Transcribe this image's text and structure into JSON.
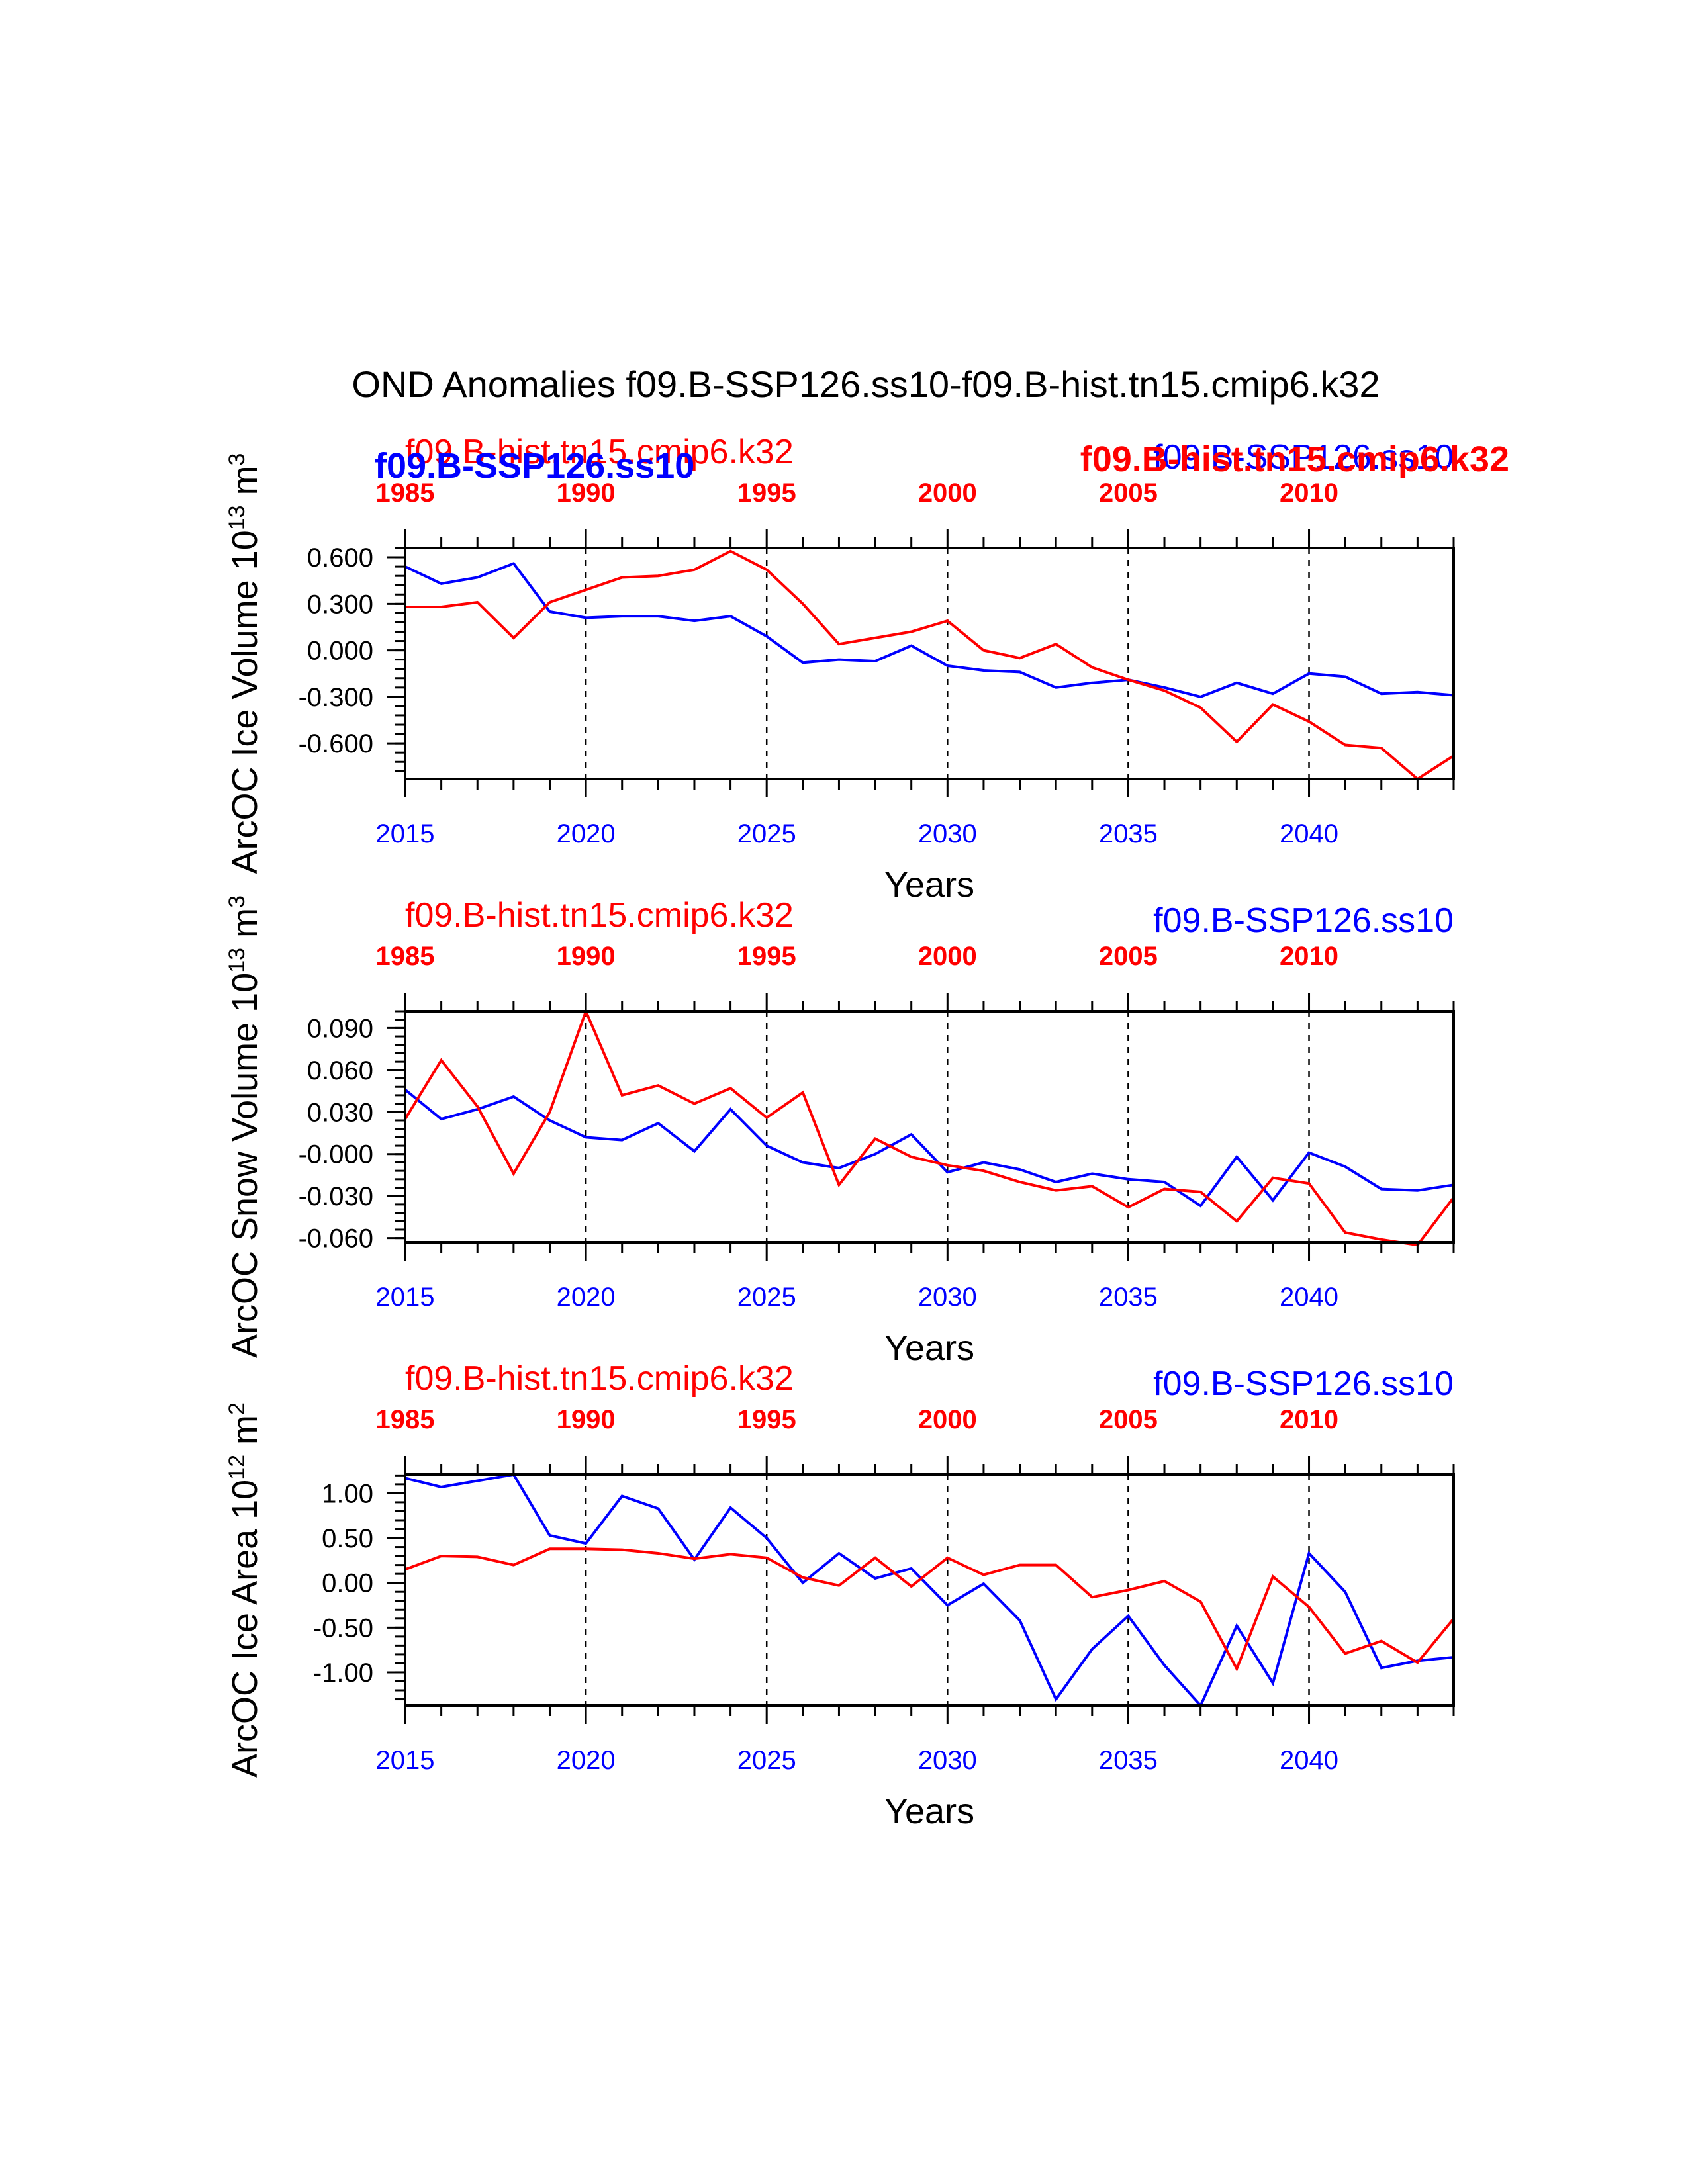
{
  "title": "OND Anomalies f09.B-SSP126.ss10-f09.B-hist.tn15.cmip6.k32",
  "colors": {
    "blue": "#0000ff",
    "red": "#ff0000",
    "axis": "#000000"
  },
  "top_overlay_labels": {
    "left_bold_blue": "f09.B-SSP126.ss10",
    "right_bold_red": "f09.B-hist.tn15.cmip6.k32"
  },
  "chart_data": [
    {
      "type": "line",
      "ylabel_base": "ArcOC Ice Volume 10",
      "ylabel_sup": "13",
      "ylabel_unit": "m",
      "ylabel_unit_sup": "3",
      "xlabel": "Years",
      "series_name_red": "f09.B-hist.tn15.cmip6.k32",
      "series_name_blue": "f09.B-SSP126.ss10",
      "xlim": [
        2015,
        2044
      ],
      "ylim": [
        -0.83,
        0.66
      ],
      "yticks": [
        -0.6,
        -0.3,
        0.0,
        0.3,
        0.6
      ],
      "ytick_labels": [
        "-0.600",
        "-0.300",
        "0.000",
        "0.300",
        "0.600"
      ],
      "ytick_minor_step": 0.06,
      "bottom_ticks": [
        2015,
        2020,
        2025,
        2030,
        2035,
        2040
      ],
      "bottom_tick_labels": [
        "2015",
        "2020",
        "2025",
        "2030",
        "2035",
        "2040"
      ],
      "top_ticks": [
        2015,
        2020,
        2025,
        2030,
        2035,
        2040
      ],
      "top_tick_labels": [
        "1985",
        "1990",
        "1995",
        "2000",
        "2005",
        "2010"
      ],
      "x": [
        2015,
        2016,
        2017,
        2018,
        2019,
        2020,
        2021,
        2022,
        2023,
        2024,
        2025,
        2026,
        2027,
        2028,
        2029,
        2030,
        2031,
        2032,
        2033,
        2034,
        2035,
        2036,
        2037,
        2038,
        2039,
        2040,
        2041,
        2042,
        2043,
        2044
      ],
      "series": [
        {
          "name": "f09.B-SSP126.ss10",
          "color": "#0000ff",
          "values": [
            0.54,
            0.43,
            0.47,
            0.56,
            0.25,
            0.21,
            0.22,
            0.22,
            0.19,
            0.22,
            0.09,
            -0.08,
            -0.06,
            -0.07,
            0.03,
            -0.1,
            -0.13,
            -0.14,
            -0.24,
            -0.21,
            -0.19,
            -0.24,
            -0.3,
            -0.21,
            -0.28,
            -0.15,
            -0.17,
            -0.28,
            -0.27,
            -0.29
          ]
        },
        {
          "name": "f09.B-hist.tn15.cmip6.k32",
          "color": "#ff0000",
          "values": [
            0.28,
            0.28,
            0.31,
            0.08,
            0.31,
            0.39,
            0.47,
            0.48,
            0.52,
            0.64,
            0.52,
            0.3,
            0.04,
            0.08,
            0.12,
            0.19,
            0.0,
            -0.05,
            0.04,
            -0.11,
            -0.19,
            -0.26,
            -0.37,
            -0.59,
            -0.35,
            -0.46,
            -0.61,
            -0.63,
            -0.83,
            -0.68
          ]
        }
      ]
    },
    {
      "type": "line",
      "ylabel_base": "ArcOC Snow Volume 10",
      "ylabel_sup": "13",
      "ylabel_unit": "m",
      "ylabel_unit_sup": "3",
      "xlabel": "Years",
      "series_name_red": "f09.B-hist.tn15.cmip6.k32",
      "series_name_blue": "f09.B-SSP126.ss10",
      "xlim": [
        2015,
        2044
      ],
      "ylim": [
        -0.063,
        0.102
      ],
      "yticks": [
        -0.06,
        -0.03,
        0.0,
        0.03,
        0.06,
        0.09
      ],
      "ytick_labels": [
        "-0.060",
        "-0.030",
        "-0.000",
        "0.030",
        "0.060",
        "0.090"
      ],
      "ytick_minor_step": 0.006,
      "bottom_ticks": [
        2015,
        2020,
        2025,
        2030,
        2035,
        2040
      ],
      "bottom_tick_labels": [
        "2015",
        "2020",
        "2025",
        "2030",
        "2035",
        "2040"
      ],
      "top_ticks": [
        2015,
        2020,
        2025,
        2030,
        2035,
        2040
      ],
      "top_tick_labels": [
        "1985",
        "1990",
        "1995",
        "2000",
        "2005",
        "2010"
      ],
      "x": [
        2015,
        2016,
        2017,
        2018,
        2019,
        2020,
        2021,
        2022,
        2023,
        2024,
        2025,
        2026,
        2027,
        2028,
        2029,
        2030,
        2031,
        2032,
        2033,
        2034,
        2035,
        2036,
        2037,
        2038,
        2039,
        2040,
        2041,
        2042,
        2043,
        2044
      ],
      "series": [
        {
          "name": "f09.B-SSP126.ss10",
          "color": "#0000ff",
          "values": [
            0.046,
            0.025,
            0.032,
            0.041,
            0.024,
            0.012,
            0.01,
            0.022,
            0.002,
            0.032,
            0.006,
            -0.006,
            -0.01,
            0.0,
            0.014,
            -0.013,
            -0.006,
            -0.011,
            -0.02,
            -0.014,
            -0.018,
            -0.02,
            -0.037,
            -0.002,
            -0.033,
            0.001,
            -0.009,
            -0.025,
            -0.026,
            -0.022
          ]
        },
        {
          "name": "f09.B-hist.tn15.cmip6.k32",
          "color": "#ff0000",
          "values": [
            0.025,
            0.067,
            0.034,
            -0.014,
            0.03,
            0.102,
            0.042,
            0.049,
            0.036,
            0.047,
            0.026,
            0.044,
            -0.022,
            0.011,
            -0.002,
            -0.008,
            -0.012,
            -0.02,
            -0.026,
            -0.023,
            -0.038,
            -0.025,
            -0.027,
            -0.048,
            -0.017,
            -0.021,
            -0.056,
            -0.061,
            -0.065,
            -0.031
          ]
        }
      ]
    },
    {
      "type": "line",
      "ylabel_base": "ArcOC Ice Area 10",
      "ylabel_sup": "12",
      "ylabel_unit": "m",
      "ylabel_unit_sup": "2",
      "xlabel": "Years",
      "series_name_red": "f09.B-hist.tn15.cmip6.k32",
      "series_name_blue": "f09.B-SSP126.ss10",
      "xlim": [
        2015,
        2044
      ],
      "ylim": [
        -1.37,
        1.21
      ],
      "yticks": [
        -1.0,
        -0.5,
        0.0,
        0.5,
        1.0
      ],
      "ytick_labels": [
        "-1.00",
        "-0.50",
        "0.00",
        "0.50",
        "1.00"
      ],
      "ytick_minor_step": 0.1,
      "bottom_ticks": [
        2015,
        2020,
        2025,
        2030,
        2035,
        2040
      ],
      "bottom_tick_labels": [
        "2015",
        "2020",
        "2025",
        "2030",
        "2035",
        "2040"
      ],
      "top_ticks": [
        2015,
        2020,
        2025,
        2030,
        2035,
        2040
      ],
      "top_tick_labels": [
        "1985",
        "1990",
        "1995",
        "2000",
        "2005",
        "2010"
      ],
      "x": [
        2015,
        2016,
        2017,
        2018,
        2019,
        2020,
        2021,
        2022,
        2023,
        2024,
        2025,
        2026,
        2027,
        2028,
        2029,
        2030,
        2031,
        2032,
        2033,
        2034,
        2035,
        2036,
        2037,
        2038,
        2039,
        2040,
        2041,
        2042,
        2043,
        2044
      ],
      "series": [
        {
          "name": "f09.B-SSP126.ss10",
          "color": "#0000ff",
          "values": [
            1.17,
            1.07,
            1.14,
            1.21,
            0.53,
            0.44,
            0.97,
            0.83,
            0.26,
            0.84,
            0.5,
            0.0,
            0.33,
            0.05,
            0.16,
            -0.25,
            -0.01,
            -0.42,
            -1.3,
            -0.74,
            -0.37,
            -0.92,
            -1.37,
            -0.48,
            -1.12,
            0.33,
            -0.1,
            -0.95,
            -0.87,
            -0.83
          ]
        },
        {
          "name": "f09.B-hist.tn15.cmip6.k32",
          "color": "#ff0000",
          "values": [
            0.15,
            0.3,
            0.29,
            0.2,
            0.38,
            0.38,
            0.37,
            0.33,
            0.27,
            0.32,
            0.28,
            0.06,
            -0.03,
            0.28,
            -0.04,
            0.28,
            0.09,
            0.2,
            0.2,
            -0.16,
            -0.08,
            0.02,
            -0.21,
            -0.96,
            0.07,
            -0.27,
            -0.79,
            -0.65,
            -0.89,
            -0.4
          ]
        }
      ]
    }
  ]
}
